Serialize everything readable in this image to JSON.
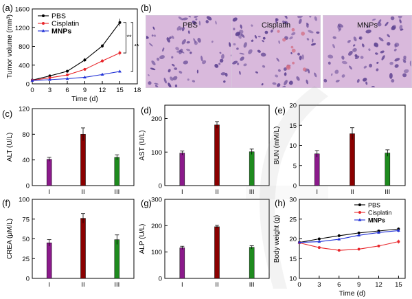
{
  "panels": {
    "a": "(a)",
    "b": "(b)",
    "c": "(c)",
    "d": "(d)",
    "e": "(e)",
    "f": "(f)",
    "g": "(g)",
    "h": "(h)"
  },
  "histology": {
    "labels": [
      "PBS",
      "Cisplatin",
      "MNPs"
    ],
    "colors": {
      "stain_bg": "#d9b9dc",
      "nuclei": "#5a3f8f",
      "rbc": "#d2687e"
    }
  },
  "chart_data": [
    {
      "id": "a",
      "type": "line",
      "xlabel": "Time (d)",
      "ylabel": "Tumor volume (mm³)",
      "x": [
        0,
        3,
        6,
        9,
        12,
        15
      ],
      "xticks": [
        0,
        3,
        6,
        9,
        12,
        15,
        18
      ],
      "yticks": [
        0,
        400,
        800,
        1200,
        1600
      ],
      "xlim": [
        0,
        18
      ],
      "ylim": [
        0,
        1600
      ],
      "series": [
        {
          "name": "PBS",
          "color": "#000000",
          "values": [
            80,
            170,
            270,
            510,
            810,
            1310
          ],
          "errors": [
            10,
            20,
            30,
            40,
            40,
            80
          ]
        },
        {
          "name": "Cisplatin",
          "color": "#e8262b",
          "values": [
            75,
            130,
            190,
            310,
            490,
            660
          ],
          "errors": [
            10,
            15,
            20,
            25,
            35,
            50
          ]
        },
        {
          "name": "MNPs",
          "color": "#1f2fd6",
          "values": [
            70,
            90,
            110,
            140,
            200,
            265
          ],
          "errors": [
            8,
            10,
            12,
            15,
            20,
            25
          ]
        }
      ],
      "legend": "top-left",
      "legend_bold": "MNPs",
      "annotations": [
        "**",
        "**"
      ]
    },
    {
      "id": "c",
      "type": "bar",
      "ylabel": "ALT (U/L)",
      "categories": [
        "I",
        "II",
        "III"
      ],
      "values": [
        41,
        80,
        44
      ],
      "errors": [
        3,
        10,
        4
      ],
      "colors": [
        "#8b1a8b",
        "#8b0000",
        "#1e8b1e"
      ],
      "ylim": [
        0,
        120
      ],
      "yticks": [
        0,
        40,
        80,
        120
      ]
    },
    {
      "id": "d",
      "type": "bar",
      "ylabel": "AST (U/L)",
      "categories": [
        "I",
        "II",
        "III"
      ],
      "values": [
        97,
        181,
        101
      ],
      "errors": [
        6,
        10,
        8
      ],
      "colors": [
        "#8b1a8b",
        "#8b0000",
        "#1e8b1e"
      ],
      "ylim": [
        0,
        240
      ],
      "yticks": [
        0,
        100,
        200
      ]
    },
    {
      "id": "e",
      "type": "bar",
      "ylabel": "BUN (mM/L)",
      "categories": [
        "I",
        "II",
        "III"
      ],
      "values": [
        7.9,
        12.9,
        8.1
      ],
      "errors": [
        0.8,
        1.5,
        0.8
      ],
      "colors": [
        "#8b1a8b",
        "#8b0000",
        "#1e8b1e"
      ],
      "ylim": [
        0,
        20
      ],
      "yticks": [
        0,
        5,
        10,
        15,
        20
      ]
    },
    {
      "id": "f",
      "type": "bar",
      "ylabel": "CREA (μM/L)",
      "categories": [
        "I",
        "II",
        "III"
      ],
      "values": [
        45,
        76,
        49
      ],
      "errors": [
        4,
        6,
        6
      ],
      "colors": [
        "#8b1a8b",
        "#8b0000",
        "#1e8b1e"
      ],
      "ylim": [
        0,
        100
      ],
      "yticks": [
        0,
        25,
        50,
        75,
        100
      ]
    },
    {
      "id": "g",
      "type": "bar",
      "ylabel": "ALP (U/L)",
      "categories": [
        "I",
        "II",
        "III"
      ],
      "values": [
        116,
        196,
        118
      ],
      "errors": [
        6,
        6,
        6
      ],
      "colors": [
        "#8b1a8b",
        "#8b0000",
        "#1e8b1e"
      ],
      "ylim": [
        0,
        300
      ],
      "yticks": [
        0,
        100,
        200,
        300
      ]
    },
    {
      "id": "h",
      "type": "line",
      "xlabel": "Time (d)",
      "ylabel": "Body weight (g)",
      "x": [
        0,
        3,
        6,
        9,
        12,
        15
      ],
      "xticks": [
        0,
        3,
        6,
        9,
        12,
        15
      ],
      "yticks": [
        10,
        15,
        20,
        25,
        30
      ],
      "xlim": [
        0,
        16
      ],
      "ylim": [
        10,
        30
      ],
      "series": [
        {
          "name": "PBS",
          "color": "#000000",
          "values": [
            19.1,
            20.0,
            20.8,
            21.5,
            22.0,
            22.5
          ],
          "errors": [
            0.3,
            0.3,
            0.3,
            0.3,
            0.3,
            0.4
          ]
        },
        {
          "name": "Cisplatin",
          "color": "#e8262b",
          "values": [
            19.0,
            17.8,
            17.1,
            17.4,
            18.2,
            19.3
          ],
          "errors": [
            0.3,
            0.3,
            0.3,
            0.3,
            0.3,
            0.5
          ]
        },
        {
          "name": "MNPs",
          "color": "#1f2fd6",
          "values": [
            19.1,
            19.3,
            19.9,
            20.9,
            21.6,
            22.1
          ],
          "errors": [
            0.3,
            0.3,
            0.3,
            0.3,
            0.3,
            0.4
          ]
        }
      ],
      "legend": "top-right",
      "legend_bold": "MNPs"
    }
  ]
}
